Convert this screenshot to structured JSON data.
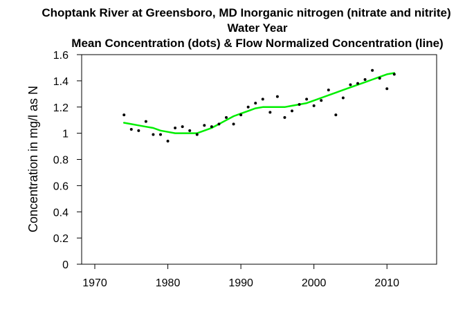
{
  "chart_data": {
    "type": "scatter",
    "title": "Choptank River at Greensboro, MD   Inorganic nitrogen (nitrate and nitrite)",
    "subtitle": "Water Year",
    "subtitle2": "Mean Concentration (dots) & Flow Normalized Concentration (line)",
    "xlabel": "",
    "ylabel": "Concentration in mg/l as N",
    "xlim": [
      1970,
      2015
    ],
    "ylim": [
      0,
      1.6
    ],
    "xticks": [
      1970,
      1980,
      1990,
      2000,
      2010
    ],
    "yticks": [
      0,
      0.2,
      0.4,
      0.6,
      0.8,
      1,
      1.2,
      1.4,
      1.6
    ],
    "xtick_labels": [
      "1970",
      "1980",
      "1990",
      "2000",
      "2010"
    ],
    "ytick_labels": [
      "0",
      "0.2",
      "0.4",
      "0.6",
      "0.8",
      "1",
      "1.2",
      "1.4",
      "1.6"
    ],
    "grid": false,
    "legend": "none",
    "series": [
      {
        "kind": "points",
        "color": "#000000",
        "x": [
          1974,
          1975,
          1976,
          1977,
          1978,
          1979,
          1980,
          1981,
          1982,
          1983,
          1984,
          1985,
          1986,
          1987,
          1988,
          1989,
          1990,
          1991,
          1992,
          1993,
          1994,
          1995,
          1996,
          1997,
          1998,
          1999,
          2000,
          2001,
          2002,
          2003,
          2004,
          2005,
          2006,
          2007,
          2008,
          2009,
          2010,
          2011
        ],
        "y": [
          1.14,
          1.03,
          1.02,
          1.09,
          0.99,
          0.99,
          0.94,
          1.04,
          1.05,
          1.02,
          0.99,
          1.06,
          1.05,
          1.07,
          1.12,
          1.07,
          1.14,
          1.2,
          1.23,
          1.26,
          1.16,
          1.28,
          1.12,
          1.17,
          1.22,
          1.26,
          1.21,
          1.25,
          1.33,
          1.14,
          1.27,
          1.37,
          1.38,
          1.41,
          1.48,
          1.42,
          1.34,
          1.45
        ]
      },
      {
        "kind": "line",
        "color": "#00ee00",
        "x": [
          1974,
          1975,
          1976,
          1977,
          1978,
          1979,
          1980,
          1981,
          1982,
          1983,
          1984,
          1985,
          1986,
          1987,
          1988,
          1989,
          1990,
          1991,
          1992,
          1993,
          1994,
          1995,
          1996,
          1997,
          1998,
          1999,
          2000,
          2001,
          2002,
          2003,
          2004,
          2005,
          2006,
          2007,
          2008,
          2009,
          2010,
          2011
        ],
        "y": [
          1.08,
          1.07,
          1.06,
          1.05,
          1.04,
          1.02,
          1.01,
          1.0,
          1.0,
          1.0,
          1.0,
          1.02,
          1.04,
          1.07,
          1.1,
          1.13,
          1.15,
          1.17,
          1.19,
          1.2,
          1.2,
          1.2,
          1.2,
          1.21,
          1.22,
          1.23,
          1.25,
          1.27,
          1.29,
          1.31,
          1.33,
          1.35,
          1.37,
          1.39,
          1.41,
          1.43,
          1.45,
          1.46
        ]
      }
    ]
  }
}
